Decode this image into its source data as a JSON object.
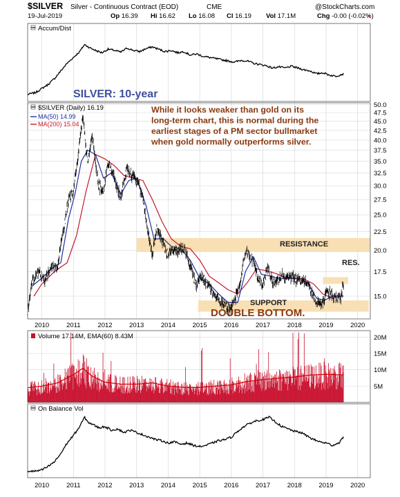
{
  "header": {
    "symbol": "$SILVER",
    "name": "Silver - Continuous Contract (EOD)",
    "exchange": "CME",
    "brand": "@StockCharts.com",
    "date": "19-Jul-2019",
    "ohlc": [
      {
        "k": "Op",
        "v": "16.39"
      },
      {
        "k": "Hi",
        "v": "16.62"
      },
      {
        "k": "Lo",
        "v": "16.08"
      },
      {
        "k": "Cl",
        "v": "16.19"
      },
      {
        "k": "Vol",
        "v": "17.1M"
      },
      {
        "k": "Chg",
        "v": "-0.00 (-0.02%)"
      }
    ],
    "down_marker": "▼"
  },
  "colors": {
    "price": "#000000",
    "ma50": "#1f2ea0",
    "ma200": "#c0182b",
    "volume_bar": "#c8102e",
    "volume_ema": "#d40000",
    "band": "#f8dfb4",
    "annotation_title": "#3d4fa0",
    "annotation_text": "#8b3a10",
    "grid": "#d8d8d8"
  },
  "annotations": {
    "title": "SILVER: 10-year",
    "note": [
      "While it looks weaker than gold on its",
      "long-term chart, this is normal during the",
      "earliest stages of a PM sector bullmarket",
      "when gold normally outperforms silver."
    ],
    "resistance": "RESISTANCE",
    "res": "RES.",
    "support": "SUPPORT",
    "double_bottom": "DOUBLE BOTTOM."
  },
  "chart_data": [
    {
      "type": "line",
      "panel": "Accum/Dist",
      "title": "Accum/Dist",
      "x": [
        2009.55,
        2009.8,
        2010.0,
        2010.2,
        2010.4,
        2010.6,
        2010.8,
        2011.0,
        2011.2,
        2011.35,
        2011.5,
        2011.7,
        2011.9,
        2012.1,
        2012.3,
        2012.5,
        2012.7,
        2012.9,
        2013.1,
        2013.3,
        2013.5,
        2013.7,
        2013.9,
        2014.1,
        2014.3,
        2014.5,
        2014.7,
        2014.9,
        2015.1,
        2015.3,
        2015.5,
        2015.7,
        2015.9,
        2016.1,
        2016.3,
        2016.5,
        2016.7,
        2016.9,
        2017.1,
        2017.3,
        2017.5,
        2017.7,
        2017.9,
        2018.1,
        2018.3,
        2018.5,
        2018.7,
        2018.9,
        2019.1,
        2019.3,
        2019.55
      ],
      "values": [
        5,
        8,
        15,
        22,
        32,
        45,
        58,
        68,
        78,
        90,
        85,
        80,
        76,
        82,
        80,
        77,
        84,
        80,
        78,
        83,
        86,
        82,
        78,
        80,
        76,
        78,
        72,
        74,
        70,
        68,
        66,
        64,
        62,
        60,
        63,
        62,
        58,
        56,
        54,
        50,
        52,
        50,
        53,
        50,
        47,
        45,
        40,
        42,
        38,
        36,
        40
      ],
      "xlim": [
        2009.55,
        2020.4
      ]
    },
    {
      "type": "line",
      "panel": "Price",
      "series_label": "$SILVER (Daily)",
      "last": "16.19",
      "x": [
        2009.55,
        2009.7,
        2009.9,
        2010.1,
        2010.3,
        2010.5,
        2010.7,
        2010.85,
        2011.0,
        2011.15,
        2011.3,
        2011.38,
        2011.45,
        2011.6,
        2011.7,
        2011.8,
        2011.95,
        2012.1,
        2012.3,
        2012.5,
        2012.7,
        2012.85,
        2013.0,
        2013.2,
        2013.35,
        2013.5,
        2013.65,
        2013.8,
        2013.95,
        2014.1,
        2014.3,
        2014.5,
        2014.7,
        2014.9,
        2015.05,
        2015.2,
        2015.4,
        2015.6,
        2015.8,
        2015.95,
        2016.1,
        2016.3,
        2016.45,
        2016.55,
        2016.7,
        2016.85,
        2017.0,
        2017.15,
        2017.3,
        2017.45,
        2017.6,
        2017.75,
        2017.9,
        2018.05,
        2018.2,
        2018.4,
        2018.6,
        2018.7,
        2018.9,
        2019.05,
        2019.2,
        2019.35,
        2019.45,
        2019.55
      ],
      "values": [
        13.5,
        16.5,
        17.5,
        16.5,
        18.2,
        18.0,
        23.0,
        27.5,
        29.0,
        36.0,
        47.0,
        39.0,
        35.5,
        40.5,
        35.0,
        30.0,
        29.0,
        34.5,
        31.5,
        27.5,
        33.5,
        32.0,
        31.0,
        28.0,
        22.5,
        19.5,
        23.0,
        21.5,
        19.5,
        20.0,
        19.8,
        20.5,
        18.0,
        16.0,
        17.0,
        16.4,
        15.5,
        14.6,
        14.2,
        13.8,
        14.5,
        16.5,
        20.0,
        19.5,
        18.5,
        16.8,
        16.0,
        18.0,
        16.5,
        16.4,
        17.2,
        16.8,
        17.0,
        16.6,
        16.6,
        16.4,
        15.0,
        14.4,
        14.5,
        15.5,
        15.0,
        14.8,
        14.6,
        16.19
      ],
      "ylim": [
        13.0,
        50.5
      ],
      "scale": "log",
      "xlim": [
        2009.55,
        2020.4
      ],
      "yticks": [
        "15.0",
        "17.5",
        "20.0",
        "22.5",
        "25.0",
        "27.5",
        "30.0",
        "32.5",
        "35.0",
        "37.5",
        "40.0",
        "42.5",
        "45.0",
        "47.5",
        "50.0"
      ],
      "resistance_zone": [
        19.8,
        21.6
      ],
      "support_zone": [
        13.6,
        14.6
      ],
      "res_zone": [
        16.2,
        16.9
      ],
      "ma50": {
        "label": "MA(50)",
        "last": "14.99",
        "x": [
          2009.7,
          2010.0,
          2010.3,
          2010.6,
          2010.85,
          2011.05,
          2011.25,
          2011.45,
          2011.7,
          2011.95,
          2012.2,
          2012.5,
          2012.75,
          2013.0,
          2013.3,
          2013.55,
          2013.85,
          2014.1,
          2014.4,
          2014.7,
          2015.0,
          2015.3,
          2015.6,
          2015.9,
          2016.2,
          2016.45,
          2016.7,
          2016.95,
          2017.25,
          2017.5,
          2017.8,
          2018.1,
          2018.4,
          2018.7,
          2018.95,
          2019.2,
          2019.55
        ],
        "values": [
          16.0,
          16.8,
          17.8,
          18.5,
          24.5,
          28.5,
          35.0,
          37.5,
          36.5,
          31.5,
          32.5,
          28.5,
          31.0,
          31.5,
          26.5,
          21.5,
          21.5,
          20.5,
          20.2,
          18.8,
          16.8,
          16.2,
          15.2,
          14.4,
          14.4,
          17.5,
          19.2,
          17.2,
          17.0,
          16.7,
          16.8,
          16.7,
          16.4,
          14.8,
          14.6,
          15.0,
          14.99
        ]
      },
      "ma200": {
        "label": "MA(200)",
        "last": "15.04",
        "x": [
          2009.75,
          2010.0,
          2010.4,
          2010.8,
          2011.1,
          2011.4,
          2011.7,
          2012.0,
          2012.3,
          2012.6,
          2012.9,
          2013.2,
          2013.5,
          2013.8,
          2014.1,
          2014.4,
          2014.7,
          2015.0,
          2015.3,
          2015.6,
          2015.9,
          2016.2,
          2016.5,
          2016.8,
          2017.1,
          2017.4,
          2017.7,
          2018.0,
          2018.3,
          2018.6,
          2018.9,
          2019.2,
          2019.55
        ],
        "values": [
          15.0,
          16.2,
          17.5,
          18.5,
          22.0,
          29.0,
          36.5,
          35.5,
          34.0,
          32.0,
          31.5,
          31.0,
          27.5,
          24.0,
          21.5,
          20.5,
          20.2,
          18.8,
          17.0,
          16.3,
          15.6,
          15.2,
          16.3,
          17.8,
          17.6,
          17.3,
          16.9,
          16.8,
          16.7,
          16.2,
          15.2,
          14.8,
          15.04
        ]
      }
    },
    {
      "type": "bar",
      "panel": "Volume",
      "label": "Volume",
      "last": "17.14M",
      "ema_label": "EMA(60)",
      "ema_last": "8.43M",
      "unit": "M",
      "yticks": [
        "5M",
        "10M",
        "15M",
        "20M"
      ],
      "ylim": [
        0,
        22
      ],
      "xlim": [
        2009.55,
        2020.4
      ],
      "profile_x": [
        2009.55,
        2010.0,
        2010.5,
        2011.0,
        2011.3,
        2011.6,
        2012.0,
        2012.5,
        2013.0,
        2013.5,
        2014.0,
        2014.5,
        2015.0,
        2015.5,
        2016.0,
        2016.5,
        2017.0,
        2017.5,
        2018.0,
        2018.5,
        2019.0,
        2019.55
      ],
      "profile_vol": [
        4.5,
        5.0,
        6.0,
        8.5,
        10.5,
        8.0,
        6.2,
        5.6,
        5.6,
        6.0,
        5.0,
        4.6,
        4.6,
        5.0,
        5.4,
        6.4,
        7.0,
        7.4,
        7.8,
        8.4,
        8.6,
        8.43
      ]
    },
    {
      "type": "line",
      "panel": "On Balance Vol",
      "title": "On Balance Vol",
      "x": [
        2009.55,
        2009.8,
        2010.0,
        2010.2,
        2010.4,
        2010.6,
        2010.8,
        2011.0,
        2011.2,
        2011.35,
        2011.45,
        2011.6,
        2011.8,
        2012.0,
        2012.2,
        2012.4,
        2012.6,
        2012.8,
        2013.0,
        2013.2,
        2013.4,
        2013.6,
        2013.8,
        2014.0,
        2014.2,
        2014.4,
        2014.6,
        2014.8,
        2015.0,
        2015.2,
        2015.4,
        2015.6,
        2015.8,
        2016.0,
        2016.2,
        2016.4,
        2016.6,
        2016.8,
        2017.0,
        2017.2,
        2017.4,
        2017.6,
        2017.8,
        2018.0,
        2018.2,
        2018.4,
        2018.6,
        2018.8,
        2019.0,
        2019.2,
        2019.4,
        2019.55
      ],
      "values": [
        4,
        4,
        6,
        12,
        20,
        34,
        52,
        65,
        80,
        96,
        88,
        84,
        78,
        80,
        74,
        76,
        70,
        74,
        70,
        66,
        62,
        58,
        56,
        52,
        54,
        50,
        52,
        48,
        46,
        48,
        52,
        56,
        58,
        62,
        72,
        80,
        86,
        90,
        92,
        96,
        88,
        80,
        76,
        72,
        70,
        64,
        58,
        54,
        52,
        48,
        52,
        62
      ],
      "xlim": [
        2009.55,
        2020.4
      ]
    }
  ],
  "xaxis": {
    "years": [
      "2010",
      "2011",
      "2012",
      "2013",
      "2014",
      "2015",
      "2016",
      "2017",
      "2018",
      "2019",
      "2020"
    ]
  }
}
